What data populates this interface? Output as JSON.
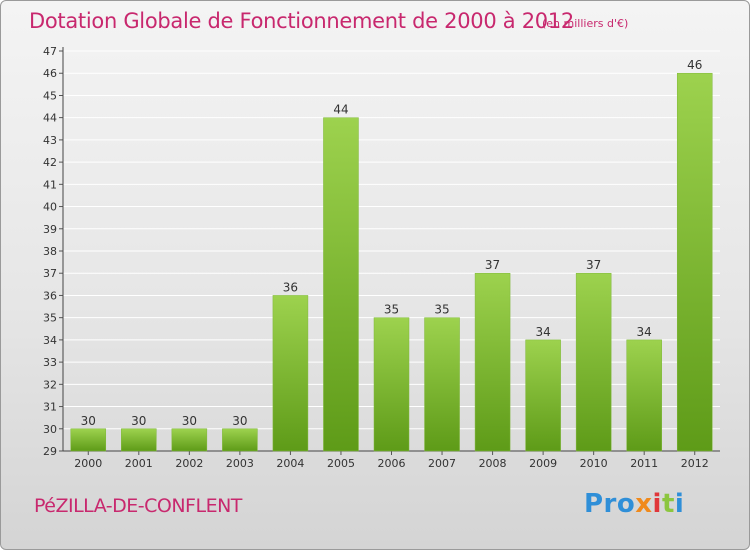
{
  "header": {
    "title": "Dotation Globale de Fonctionnement de 2000 à 2012",
    "subtitle": "(en milliers d'€)"
  },
  "footer": {
    "commune": "PéZILLA-DE-CONFLENT",
    "logo": {
      "p1": "Pro",
      "p2": "x",
      "p3": "i",
      "p4": "t",
      "p5": "i"
    }
  },
  "colors": {
    "title": "#c8286e",
    "bar_top": "#9dd24e",
    "bar_bottom": "#5e9b18",
    "grid": "#ffffff"
  },
  "chart_data": {
    "type": "bar",
    "categories": [
      "2000",
      "2001",
      "2002",
      "2003",
      "2004",
      "2005",
      "2006",
      "2007",
      "2008",
      "2009",
      "2010",
      "2011",
      "2012"
    ],
    "values": [
      30,
      30,
      30,
      30,
      36,
      44,
      35,
      35,
      37,
      34,
      37,
      34,
      46
    ],
    "ylim": [
      29,
      47
    ],
    "yticks": [
      29,
      30,
      31,
      32,
      33,
      34,
      35,
      36,
      37,
      38,
      39,
      40,
      41,
      42,
      43,
      44,
      45,
      46,
      47
    ],
    "grid": true,
    "data_labels": true
  }
}
